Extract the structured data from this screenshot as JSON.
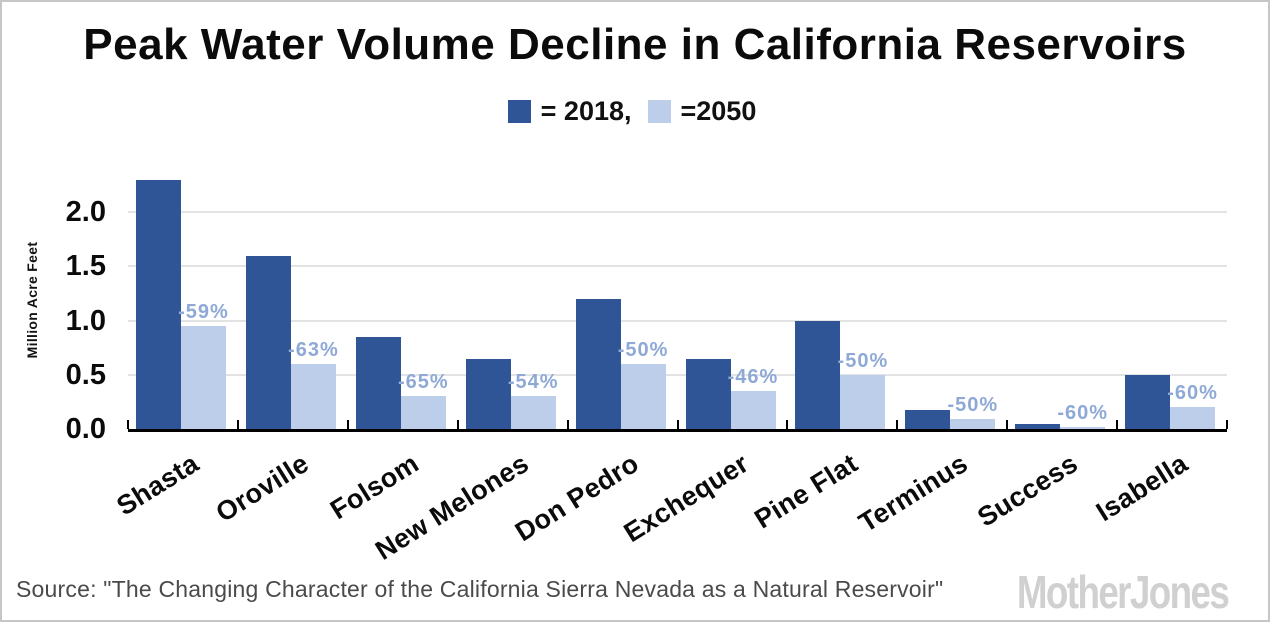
{
  "title": "Peak Water Volume Decline in California Reservoirs",
  "legend": {
    "items": [
      {
        "name": "2018",
        "label": "= 2018,",
        "color": "#2F5597"
      },
      {
        "name": "2050",
        "label": "=2050",
        "color": "#BDCEEA"
      }
    ]
  },
  "chart_data": {
    "type": "bar",
    "title": "Peak Water Volume Decline in California Reservoirs",
    "categories": [
      "Shasta",
      "Oroville",
      "Folsom",
      "New Melones",
      "Don Pedro",
      "Exchequer",
      "Pine Flat",
      "Terminus",
      "Success",
      "Isabella"
    ],
    "series": [
      {
        "name": "2018",
        "color": "#2F5597",
        "values": [
          2.3,
          1.6,
          0.85,
          0.65,
          1.2,
          0.65,
          1.0,
          0.18,
          0.05,
          0.5
        ]
      },
      {
        "name": "2050",
        "color": "#BDCEEA",
        "values": [
          0.95,
          0.6,
          0.3,
          0.3,
          0.6,
          0.35,
          0.5,
          0.09,
          0.02,
          0.2
        ]
      }
    ],
    "bar_labels": [
      "-59%",
      "-63%",
      "-65%",
      "-54%",
      "-50%",
      "-46%",
      "-50%",
      "-50%",
      "-60%",
      "-60%"
    ],
    "bar_label_color": "#8FA9D6",
    "xlabel": "",
    "ylabel": "Million Acre Feet",
    "yticks": [
      0.0,
      0.5,
      1.0,
      1.5,
      2.0
    ],
    "ytick_labels": [
      "0.0",
      "0.5",
      "1.0",
      "1.5",
      "2.0"
    ],
    "ylim": [
      0,
      2.38
    ],
    "grid": true,
    "gridline_color": "#E3E3E3",
    "axis_color": "#000000",
    "legend_position": "top"
  },
  "footer": {
    "source": "Source: \"The Changing Character of the California Sierra Nevada as a Natural Reservoir\"",
    "logo": "MotherJones"
  }
}
